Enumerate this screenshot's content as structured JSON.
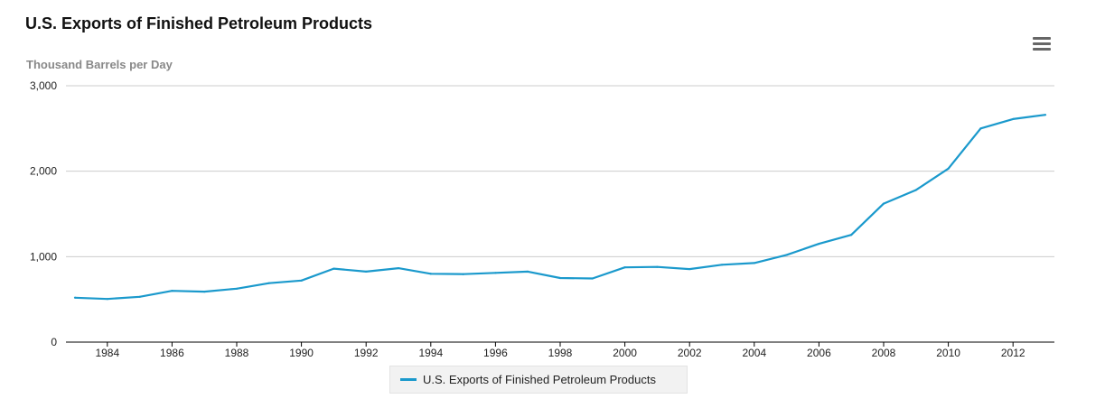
{
  "header": {
    "title": "U.S. Exports of Finished Petroleum Products",
    "menu_icon": "hamburger-menu-icon"
  },
  "colors": {
    "series": "#1a99cc",
    "grid": "#cccccc",
    "axis": "#000000"
  },
  "chart_data": {
    "type": "line",
    "title": "U.S. Exports of Finished Petroleum Products",
    "xlabel": "",
    "ylabel": "Thousand Barrels per Day",
    "xlim": [
      1983,
      2013
    ],
    "ylim": [
      0,
      3000
    ],
    "yticks": [
      0,
      1000,
      2000,
      3000
    ],
    "ytick_labels": [
      "0",
      "1,000",
      "2,000",
      "3,000"
    ],
    "xticks": [
      1984,
      1986,
      1988,
      1990,
      1992,
      1994,
      1996,
      1998,
      2000,
      2002,
      2004,
      2006,
      2008,
      2010,
      2012
    ],
    "grid": true,
    "legend_position": "bottom-center",
    "series": [
      {
        "name": "U.S. Exports of Finished Petroleum Products",
        "x": [
          1983,
          1984,
          1985,
          1986,
          1987,
          1988,
          1989,
          1990,
          1991,
          1992,
          1993,
          1994,
          1995,
          1996,
          1997,
          1998,
          1999,
          2000,
          2001,
          2002,
          2003,
          2004,
          2005,
          2006,
          2007,
          2008,
          2009,
          2010,
          2011,
          2012,
          2013
        ],
        "values": [
          520,
          505,
          530,
          600,
          590,
          625,
          690,
          720,
          860,
          825,
          865,
          800,
          795,
          810,
          825,
          750,
          745,
          875,
          880,
          855,
          905,
          925,
          1020,
          1150,
          1255,
          1620,
          1780,
          2030,
          2500,
          2610,
          2660
        ]
      }
    ]
  }
}
